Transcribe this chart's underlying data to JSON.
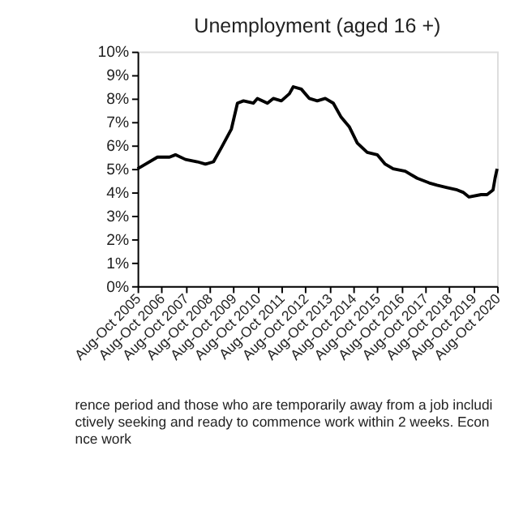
{
  "chart_data": {
    "type": "line",
    "title": "Unemployment (aged 16 +)",
    "x": [
      "2005-09",
      "2006-01",
      "2006-07",
      "2007-01",
      "2007-04",
      "2007-09",
      "2008-03",
      "2008-07",
      "2008-11",
      "2009-03",
      "2009-08",
      "2009-11",
      "2010-02",
      "2010-07",
      "2010-09",
      "2011-02",
      "2011-05",
      "2011-09",
      "2012-01",
      "2012-03",
      "2012-07",
      "2012-11",
      "2013-03",
      "2013-07",
      "2013-11",
      "2014-03",
      "2014-07",
      "2014-11",
      "2015-04",
      "2015-09",
      "2016-01",
      "2016-05",
      "2016-11",
      "2017-05",
      "2017-11",
      "2018-03",
      "2018-08",
      "2019-01",
      "2019-04",
      "2019-07",
      "2020-01",
      "2020-04",
      "2020-07",
      "2020-08",
      "2020-09"
    ],
    "series": [
      {
        "color": "#000000",
        "values": [
          5.0,
          5.2,
          5.5,
          5.5,
          5.6,
          5.4,
          5.3,
          5.2,
          5.3,
          5.9,
          6.7,
          7.8,
          7.9,
          7.8,
          8.0,
          7.8,
          8.0,
          7.9,
          8.2,
          8.5,
          8.4,
          8.0,
          7.9,
          8.0,
          7.8,
          7.2,
          6.8,
          6.1,
          5.7,
          5.6,
          5.2,
          5.0,
          4.9,
          4.6,
          4.4,
          4.3,
          4.2,
          4.1,
          4.0,
          3.8,
          3.9,
          3.9,
          4.1,
          4.6,
          5.0
        ]
      }
    ],
    "xlim": [
      "2005-09",
      "2020-09"
    ],
    "xticks": [
      {
        "value": "2005-09",
        "label": "Aug-Oct 2005"
      },
      {
        "value": "2006-09",
        "label": "Aug-Oct 2006"
      },
      {
        "value": "2007-09",
        "label": "Aug-Oct 2007"
      },
      {
        "value": "2008-09",
        "label": "Aug-Oct 2008"
      },
      {
        "value": "2009-09",
        "label": "Aug-Oct 2009"
      },
      {
        "value": "2010-09",
        "label": "Aug-Oct 2010"
      },
      {
        "value": "2011-09",
        "label": "Aug-Oct 2011"
      },
      {
        "value": "2012-09",
        "label": "Aug-Oct 2012"
      },
      {
        "value": "2013-09",
        "label": "Aug-Oct 2013"
      },
      {
        "value": "2014-09",
        "label": "Aug-Oct 2014"
      },
      {
        "value": "2015-09",
        "label": "Aug-Oct 2015"
      },
      {
        "value": "2016-09",
        "label": "Aug-Oct 2016"
      },
      {
        "value": "2017-09",
        "label": "Aug-Oct 2017"
      },
      {
        "value": "2018-09",
        "label": "Aug-Oct 2018"
      },
      {
        "value": "2019-09",
        "label": "Aug-Oct 2019"
      },
      {
        "value": "2020-09",
        "label": "Aug-Oct 2020"
      }
    ],
    "ylim": [
      0,
      10
    ],
    "yticks": [
      {
        "value": 0,
        "label": "0%"
      },
      {
        "value": 1,
        "label": "1%"
      },
      {
        "value": 2,
        "label": "2%"
      },
      {
        "value": 3,
        "label": "3%"
      },
      {
        "value": 4,
        "label": "4%"
      },
      {
        "value": 5,
        "label": "5%"
      },
      {
        "value": 6,
        "label": "6%"
      },
      {
        "value": 7,
        "label": "7%"
      },
      {
        "value": 8,
        "label": "8%"
      },
      {
        "value": 9,
        "label": "9%"
      },
      {
        "value": 10,
        "label": "10%"
      }
    ],
    "grid": false,
    "marker": "none",
    "line_style": "solid",
    "annotations": [
      "rence period and those who are temporarily away from a job includi",
      "ctively seeking and ready to commence work within 2 weeks. Econ",
      "nce work"
    ]
  }
}
